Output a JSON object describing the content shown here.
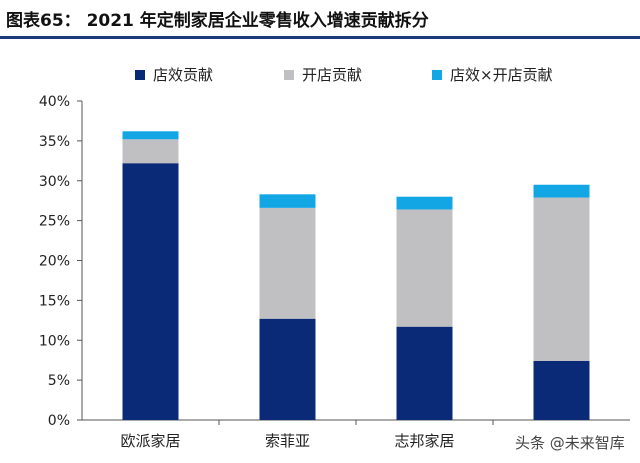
{
  "header": {
    "title": "图表65：   2021 年定制家居企业零售收入增速贡献拆分"
  },
  "watermark": "头条 @未来智库",
  "chart_data": {
    "type": "bar",
    "stacked": true,
    "categories": [
      "欧派家居",
      "索菲亚",
      "志邦家居",
      ""
    ],
    "series": [
      {
        "name": "店效贡献",
        "color": "#0a2a78",
        "values": [
          32.2,
          12.7,
          11.7,
          7.4
        ]
      },
      {
        "name": "开店贡献",
        "color": "#c0c0c3",
        "values": [
          3.0,
          13.9,
          14.7,
          20.5
        ]
      },
      {
        "name": "店效×开店贡献",
        "color": "#12a7e4",
        "values": [
          1.0,
          1.7,
          1.6,
          1.6
        ]
      }
    ],
    "yticks": [
      "0%",
      "5%",
      "10%",
      "15%",
      "20%",
      "25%",
      "30%",
      "35%",
      "40%"
    ],
    "ylim": [
      0,
      40
    ],
    "legend_position": "top",
    "grid": false
  }
}
